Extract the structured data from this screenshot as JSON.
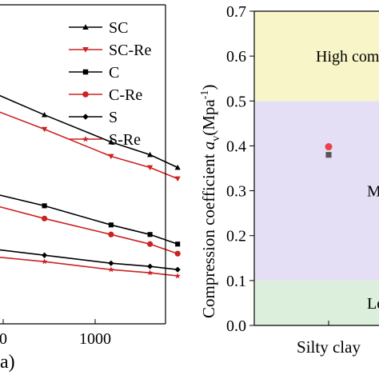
{
  "chart_data": [
    {
      "type": "line",
      "xscale": "log",
      "xlim": [
        100,
        2000
      ],
      "ylim": [
        0,
        1
      ],
      "tick_labels_x": [
        "0",
        "1000"
      ],
      "xlabel_fragment": "a)",
      "legend_position": "top-right",
      "series": [
        {
          "name": "SC",
          "color": "#000000",
          "marker": "triangle-up",
          "x": [
            30,
            100,
            200,
            400,
            800,
            1200,
            1600
          ],
          "y": [
            0.95,
            0.83,
            0.745,
            0.655,
            0.57,
            0.53,
            0.49
          ]
        },
        {
          "name": "SC-Re",
          "color": "#cc2222",
          "marker": "triangle-down",
          "x": [
            30,
            100,
            200,
            400,
            800,
            1200,
            1600
          ],
          "y": [
            0.88,
            0.77,
            0.69,
            0.61,
            0.525,
            0.49,
            0.455
          ]
        },
        {
          "name": "C",
          "color": "#000000",
          "marker": "square",
          "x": [
            30,
            100,
            200,
            400,
            800,
            1200,
            1600
          ],
          "y": [
            0.54,
            0.47,
            0.42,
            0.37,
            0.31,
            0.28,
            0.25
          ]
        },
        {
          "name": "C-Re",
          "color": "#cc2222",
          "marker": "circle",
          "x": [
            30,
            100,
            200,
            400,
            800,
            1200,
            1600
          ],
          "y": [
            0.5,
            0.435,
            0.385,
            0.33,
            0.28,
            0.25,
            0.22
          ]
        },
        {
          "name": "S",
          "color": "#000000",
          "marker": "diamond",
          "x": [
            30,
            100,
            200,
            400,
            800,
            1200,
            1600
          ],
          "y": [
            0.3,
            0.26,
            0.24,
            0.215,
            0.19,
            0.18,
            0.17
          ]
        },
        {
          "name": "S-Re",
          "color": "#cc2222",
          "marker": "star",
          "x": [
            30,
            100,
            200,
            400,
            800,
            1200,
            1600
          ],
          "y": [
            0.27,
            0.235,
            0.215,
            0.195,
            0.17,
            0.16,
            0.15
          ]
        }
      ]
    },
    {
      "type": "scatter",
      "ylabel_main": "Compression coefficient ",
      "ylabel_var": "a",
      "ylabel_sub": "v",
      "ylabel_unit": "(Mpa",
      "ylabel_sup": "-1",
      "ylabel_close": ")",
      "ylim": [
        0,
        0.7
      ],
      "yticks": [
        "0.0",
        "0.1",
        "0.2",
        "0.3",
        "0.4",
        "0.5",
        "0.6",
        "0.7"
      ],
      "categories": [
        "Silty clay"
      ],
      "bands": [
        {
          "label": "Le",
          "from": 0.0,
          "to": 0.1,
          "color": "#dcefdc"
        },
        {
          "label": "M",
          "from": 0.1,
          "to": 0.5,
          "color": "#e4dff4"
        },
        {
          "label": "High com",
          "from": 0.5,
          "to": 0.7,
          "color": "#f8f6c8"
        }
      ],
      "points": [
        {
          "category": "Silty clay",
          "value": 0.398,
          "color": "#e8424a",
          "marker": "circle"
        },
        {
          "category": "Silty clay",
          "value": 0.38,
          "color": "#555555",
          "marker": "square"
        }
      ]
    }
  ]
}
